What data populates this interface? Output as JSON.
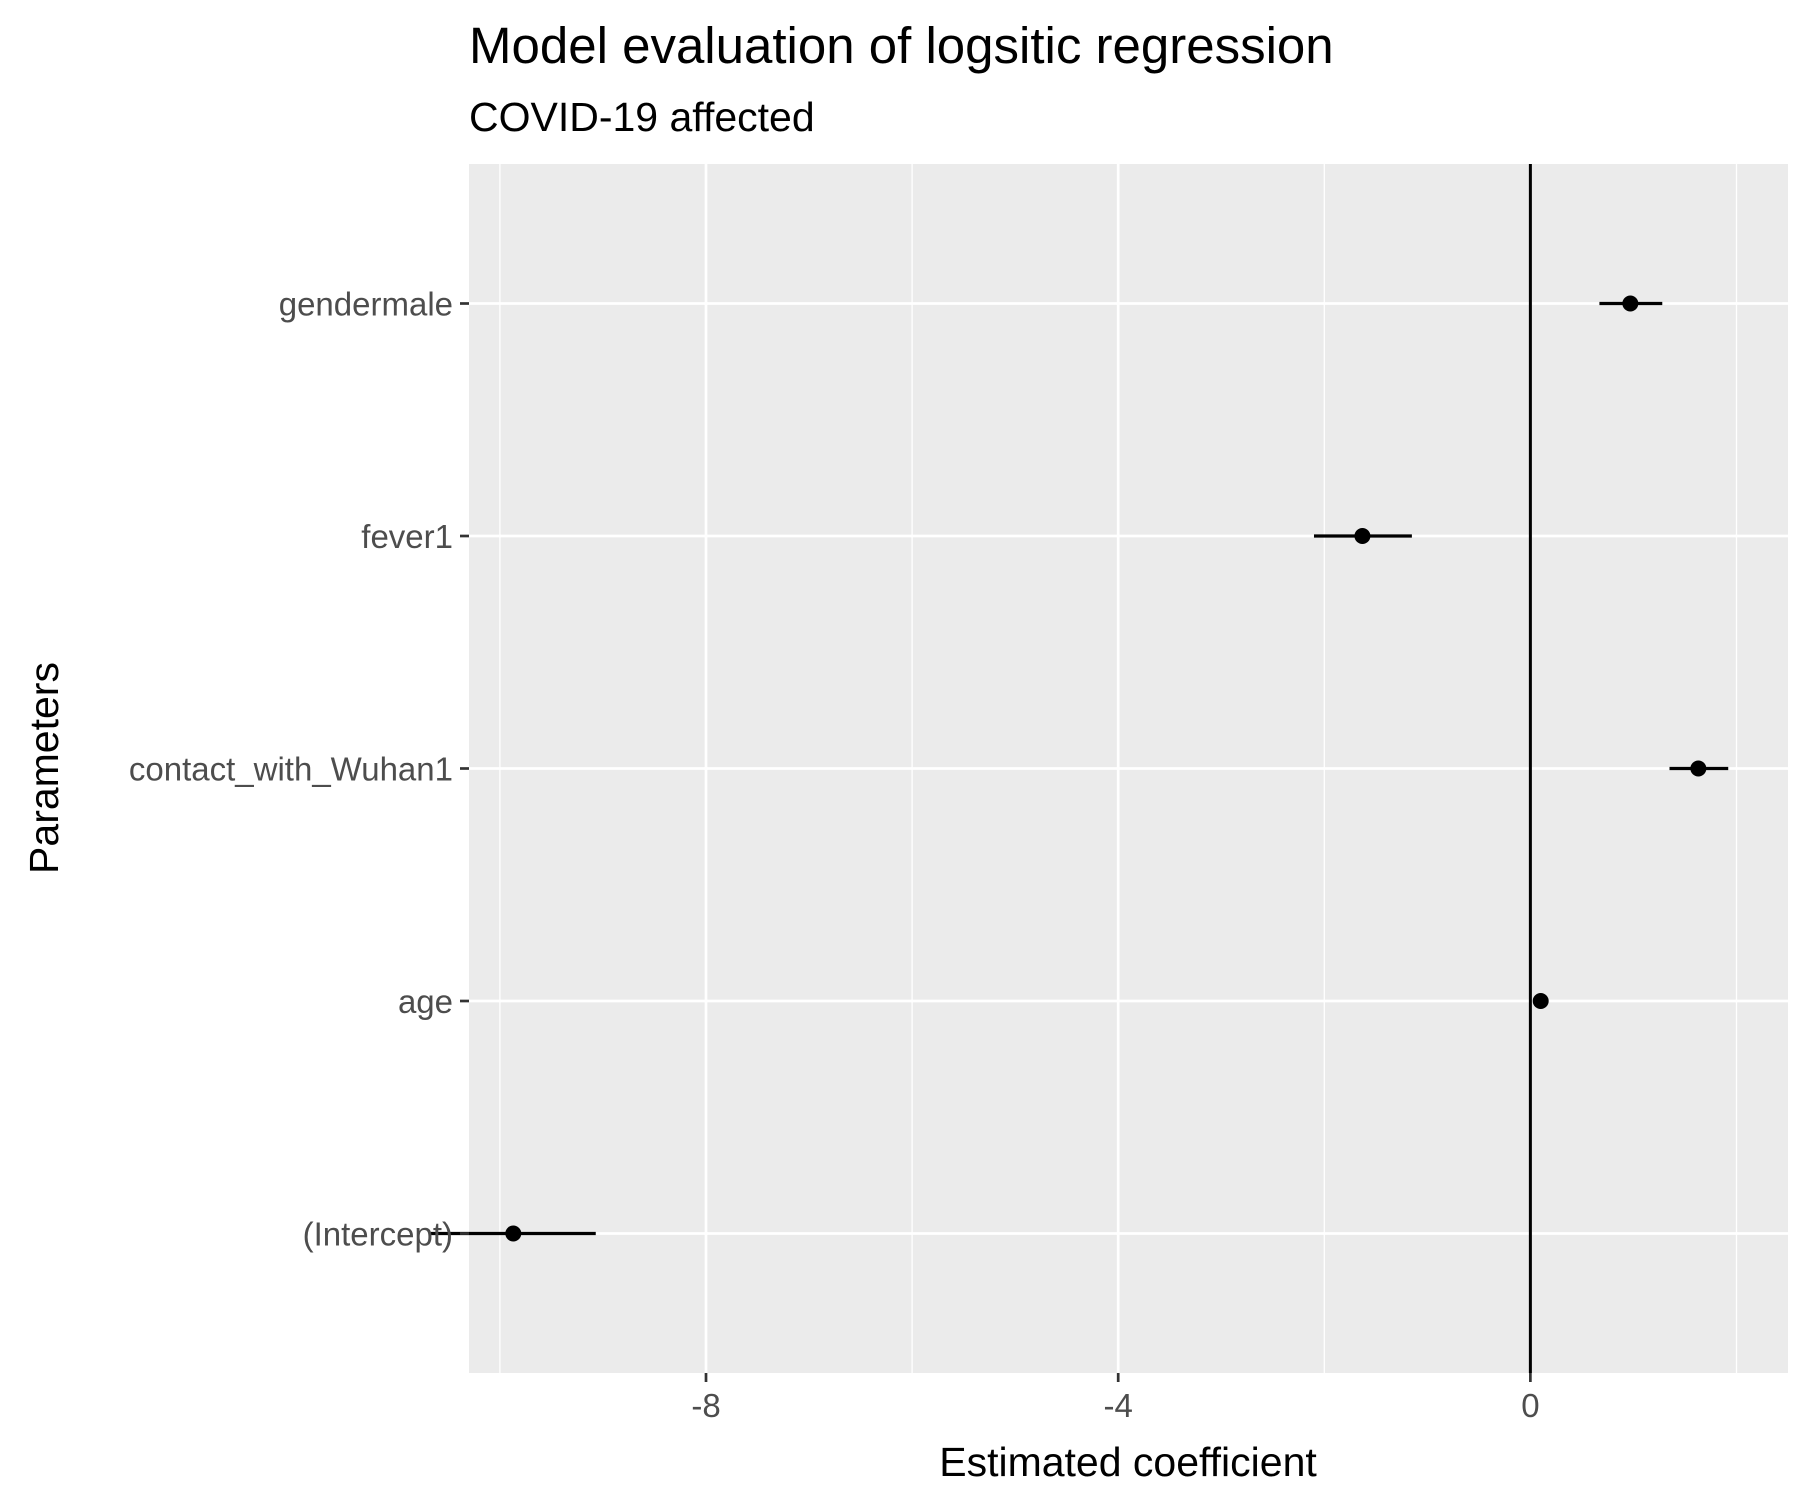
{
  "chart_data": {
    "type": "scatter",
    "title": "Model evaluation of logsitic regression",
    "subtitle": "COVID-19 affected",
    "xlabel": "Estimated coefficient",
    "ylabel": "Parameters",
    "xlim": [
      -10.3,
      2.5
    ],
    "x_ticks": [
      -8,
      -4,
      0
    ],
    "x_tick_labels": [
      "-8",
      "-4",
      "0"
    ],
    "x_minor_gridlines": [
      -10,
      -6,
      -2,
      2
    ],
    "reference_line_x": 0,
    "categories": [
      "gendermale",
      "fever1",
      "contact_with_Wuhan1",
      "age",
      "(Intercept)"
    ],
    "series": [
      {
        "estimate": [
          0.97,
          -1.63,
          1.63,
          0.1,
          -9.87
        ],
        "ci_low": [
          0.67,
          -2.1,
          1.35,
          0.07,
          -10.67
        ],
        "ci_high": [
          1.28,
          -1.15,
          1.92,
          0.13,
          -9.07
        ]
      }
    ],
    "grid": true,
    "legend": "none",
    "colors": {
      "panel_background": "#ebebeb",
      "grid": "#ffffff",
      "points": "#000000",
      "reference_line": "#000000",
      "tick_text": "#4d4d4d"
    }
  }
}
